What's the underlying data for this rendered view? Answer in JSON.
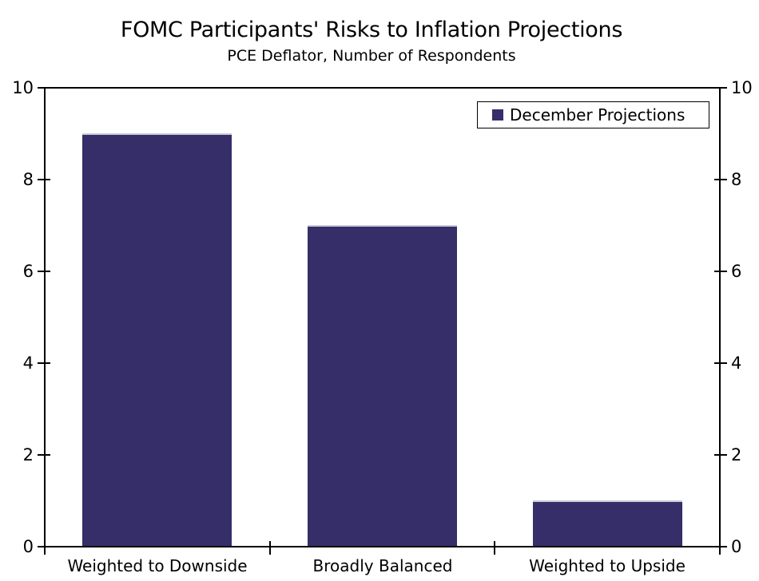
{
  "title": "FOMC Participants' Risks to Inflation Projections",
  "subtitle": "PCE Deflator, Number of Respondents",
  "legend": {
    "label": "December Projections"
  },
  "colors": {
    "bar": "#352E68",
    "bar_top_edge": "#CBCBDB",
    "axis": "#000000",
    "text": "#000000",
    "background": "#FFFFFF"
  },
  "chart_data": {
    "type": "bar",
    "title": "FOMC Participants' Risks to Inflation Projections",
    "subtitle": "PCE Deflator, Number of Respondents",
    "categories": [
      "Weighted to Downside",
      "Broadly Balanced",
      "Weighted to Upside"
    ],
    "series": [
      {
        "name": "December Projections",
        "values": [
          9,
          7,
          1
        ]
      }
    ],
    "xlabel": "",
    "ylabel": "",
    "ylim": [
      0,
      10
    ],
    "yticks": [
      0,
      2,
      4,
      6,
      8,
      10
    ],
    "grid": false,
    "dual_y_axis": true,
    "legend_position": "top-right"
  }
}
